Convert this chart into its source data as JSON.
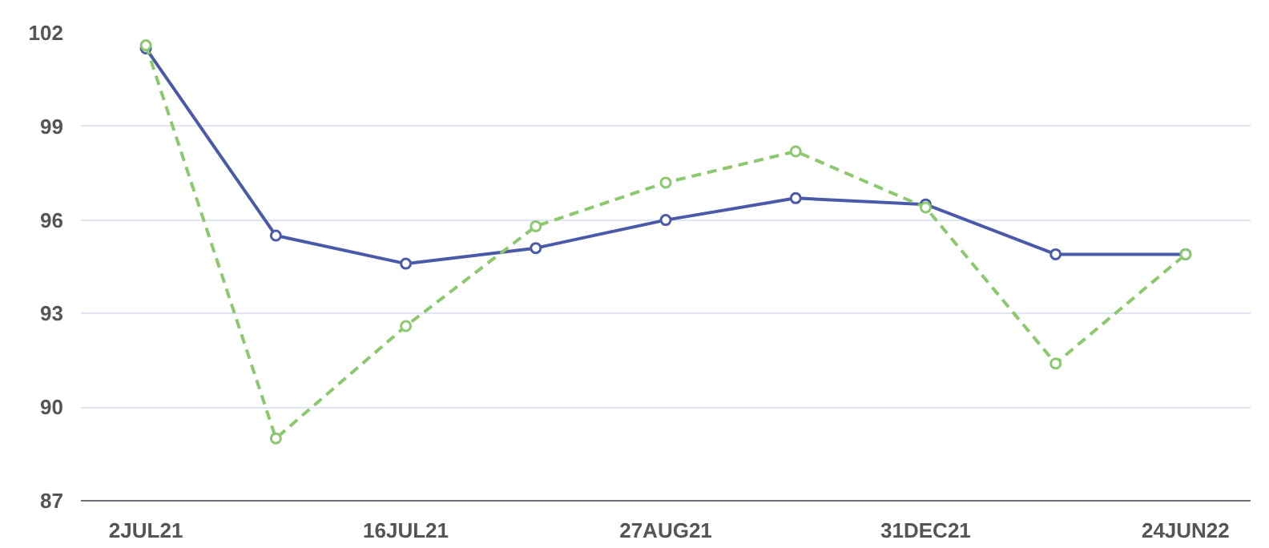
{
  "chart_data": {
    "type": "line",
    "categories": [
      "2JUL21",
      null,
      "16JUL21",
      null,
      "27AUG21",
      null,
      "31DEC21",
      null,
      "24JUN22"
    ],
    "series": [
      {
        "color": "#4a5aa8",
        "line_style": "solid",
        "values": [
          101.5,
          95.5,
          94.6,
          95.1,
          96.0,
          96.7,
          96.5,
          94.9,
          94.9
        ]
      },
      {
        "color": "#8bc86e",
        "line_style": "dashed",
        "values": [
          101.6,
          89.0,
          92.6,
          95.8,
          97.2,
          98.2,
          96.4,
          91.4,
          94.9
        ]
      }
    ],
    "ylim": [
      87,
      102
    ],
    "yticks": [
      87,
      90,
      93,
      96,
      99,
      102
    ],
    "grid": "y",
    "marker": "circle"
  }
}
